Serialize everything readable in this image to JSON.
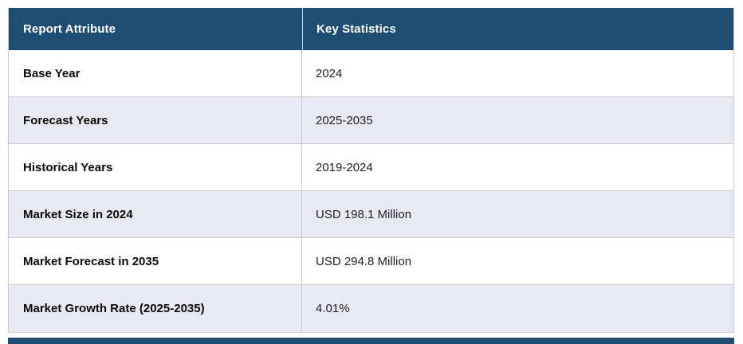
{
  "table": {
    "columns": [
      {
        "label": "Report Attribute"
      },
      {
        "label": "Key Statistics"
      }
    ],
    "rows": [
      {
        "attribute": "Base Year",
        "value": "2024"
      },
      {
        "attribute": "Forecast Years",
        "value": "2025-2035"
      },
      {
        "attribute": "Historical Years",
        "value": "2019-2024"
      },
      {
        "attribute": "Market Size in 2024",
        "value": "USD 198.1 Million"
      },
      {
        "attribute": "Market Forecast in 2035",
        "value": "USD 294.8 Million"
      },
      {
        "attribute": "Market Growth Rate (2025-2035)",
        "value": "4.01%"
      }
    ]
  },
  "colors": {
    "header_bg": "#1F4E74",
    "header_text": "#FFFFFF",
    "row_bg": "#FFFFFF",
    "row_alt_bg": "#E8E9F2",
    "border": "#CCCCCC",
    "attribute_text": "#0A0A0A",
    "value_text": "#222222"
  }
}
